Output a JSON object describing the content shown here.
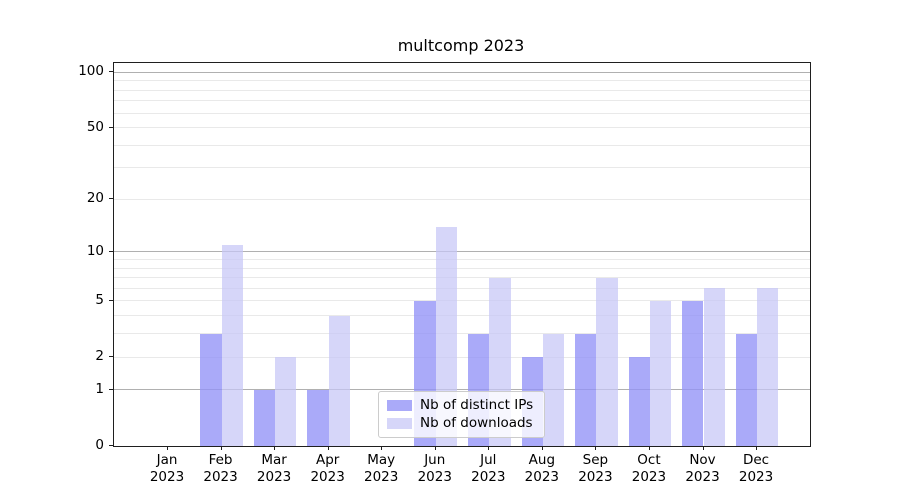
{
  "chart_data": {
    "type": "bar",
    "title": "multcomp 2023",
    "categories": [
      "Jan",
      "Feb",
      "Mar",
      "Apr",
      "May",
      "Jun",
      "Jul",
      "Aug",
      "Sep",
      "Oct",
      "Nov",
      "Dec"
    ],
    "category_year": "2023",
    "series": [
      {
        "name": "Nb of distinct IPs",
        "values": [
          0,
          3,
          1,
          1,
          0,
          5,
          3,
          2,
          3,
          2,
          5,
          3
        ],
        "color": "rgba(146,146,247,0.78)"
      },
      {
        "name": "Nb of downloads",
        "values": [
          0,
          11,
          2,
          4,
          0,
          14,
          7,
          3,
          7,
          5,
          6,
          6
        ],
        "color": "rgba(198,198,247,0.72)"
      }
    ],
    "xlabel": "",
    "ylabel": "",
    "yscale": "log1p",
    "ylim": [
      0,
      111
    ],
    "y_ticks": [
      100,
      50,
      20,
      10,
      5,
      2,
      1,
      0
    ],
    "major_gridlines": [
      1,
      10,
      100
    ],
    "minor_gridlines": [
      2,
      3,
      4,
      5,
      6,
      7,
      8,
      9,
      20,
      30,
      40,
      50,
      60,
      70,
      80,
      90
    ],
    "grid": "on",
    "legend_position": "lower center",
    "colors": {
      "major_grid": "#b0b0b0",
      "minor_grid": "#e9e9e9",
      "spine": "#1f1f1f",
      "background": "#ffffff"
    }
  }
}
